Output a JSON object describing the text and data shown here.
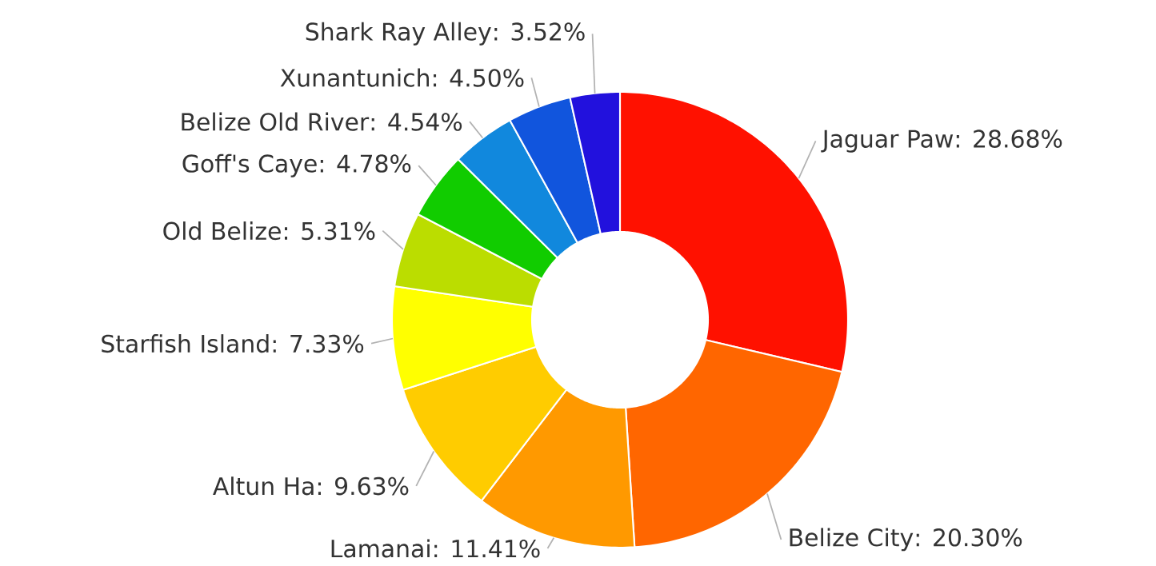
{
  "chart_data": {
    "type": "donut",
    "categories": [
      "Jaguar Paw",
      "Belize City",
      "Lamanai",
      "Altun Ha",
      "Starfish Island",
      "Old Belize",
      "Goff's Caye",
      "Belize Old River",
      "Xunantunich",
      "Shark Ray Alley"
    ],
    "values": [
      28.68,
      20.3,
      11.41,
      9.63,
      7.33,
      5.31,
      4.78,
      4.54,
      4.5,
      3.52
    ],
    "value_labels": [
      ": 28.68%",
      ": 20.30%",
      ": 11.41%",
      ": 9.63%",
      ": 7.33%",
      ": 5.31%",
      ": 4.78%",
      ": 4.54%",
      ": 4.50%",
      ": 3.52%"
    ],
    "colors": [
      "#ff1100",
      "#ff6600",
      "#ff9900",
      "#ffcc00",
      "#ffff00",
      "#bbdd00",
      "#11cc00",
      "#1188dd",
      "#1155dd",
      "#2211dd"
    ]
  }
}
